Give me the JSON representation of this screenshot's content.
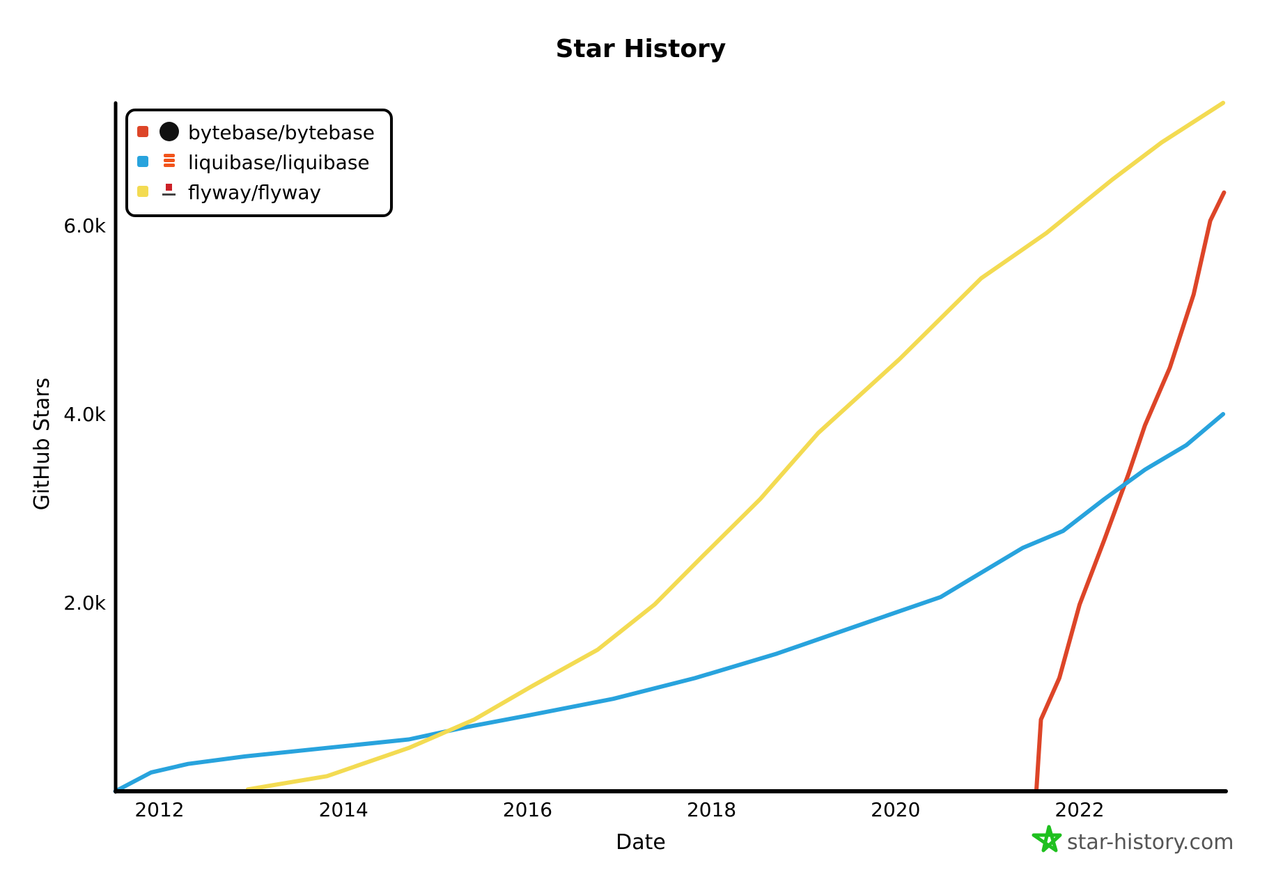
{
  "chart_data": {
    "type": "line",
    "title": "Star History",
    "xlabel": "Date",
    "ylabel": "GitHub Stars",
    "xlim": [
      2011.52,
      2023.58
    ],
    "ylim": [
      0,
      7300
    ],
    "x_ticks": [
      "2012",
      "2014",
      "2016",
      "2018",
      "2020",
      "2022"
    ],
    "y_ticks": [
      "2.0k",
      "4.0k",
      "6.0k"
    ],
    "grid": false,
    "legend_position": "top-left",
    "series": [
      {
        "name": "bytebase/bytebase",
        "color": "#dd4528",
        "icon": "github-icon",
        "x": [
          2021.53,
          2021.58,
          2021.78,
          2022.0,
          2022.27,
          2022.53,
          2022.71,
          2022.98,
          2023.24,
          2023.42,
          2023.57
        ],
        "y": [
          0,
          760,
          1200,
          1980,
          2670,
          3360,
          3880,
          4490,
          5270,
          6050,
          6350
        ]
      },
      {
        "name": "liquibase/liquibase",
        "color": "#28a3dd",
        "icon": "liquibase-icon",
        "x": [
          2011.52,
          2011.91,
          2012.31,
          2012.93,
          2013.82,
          2014.71,
          2015.33,
          2016.04,
          2016.93,
          2017.82,
          2018.71,
          2019.6,
          2020.49,
          2021.38,
          2021.82,
          2022.27,
          2022.71,
          2023.16,
          2023.56
        ],
        "y": [
          0,
          200,
          290,
          370,
          460,
          550,
          680,
          810,
          980,
          1200,
          1460,
          1760,
          2060,
          2580,
          2760,
          3100,
          3410,
          3670,
          4000
        ]
      },
      {
        "name": "flyway/flyway",
        "color": "#f3db52",
        "icon": "flyway-icon",
        "x": [
          2012.96,
          2013.82,
          2014.71,
          2015.42,
          2016.04,
          2016.76,
          2017.38,
          2017.91,
          2018.53,
          2019.16,
          2020.04,
          2020.93,
          2021.64,
          2022.36,
          2022.89,
          2023.56
        ],
        "y": [
          20,
          160,
          460,
          760,
          1110,
          1500,
          1980,
          2500,
          3100,
          3800,
          4580,
          5440,
          5920,
          6490,
          6880,
          7300
        ]
      }
    ]
  },
  "watermark": {
    "text": "star-history.com",
    "icon": "star-icon",
    "color": "#1fc01f"
  }
}
